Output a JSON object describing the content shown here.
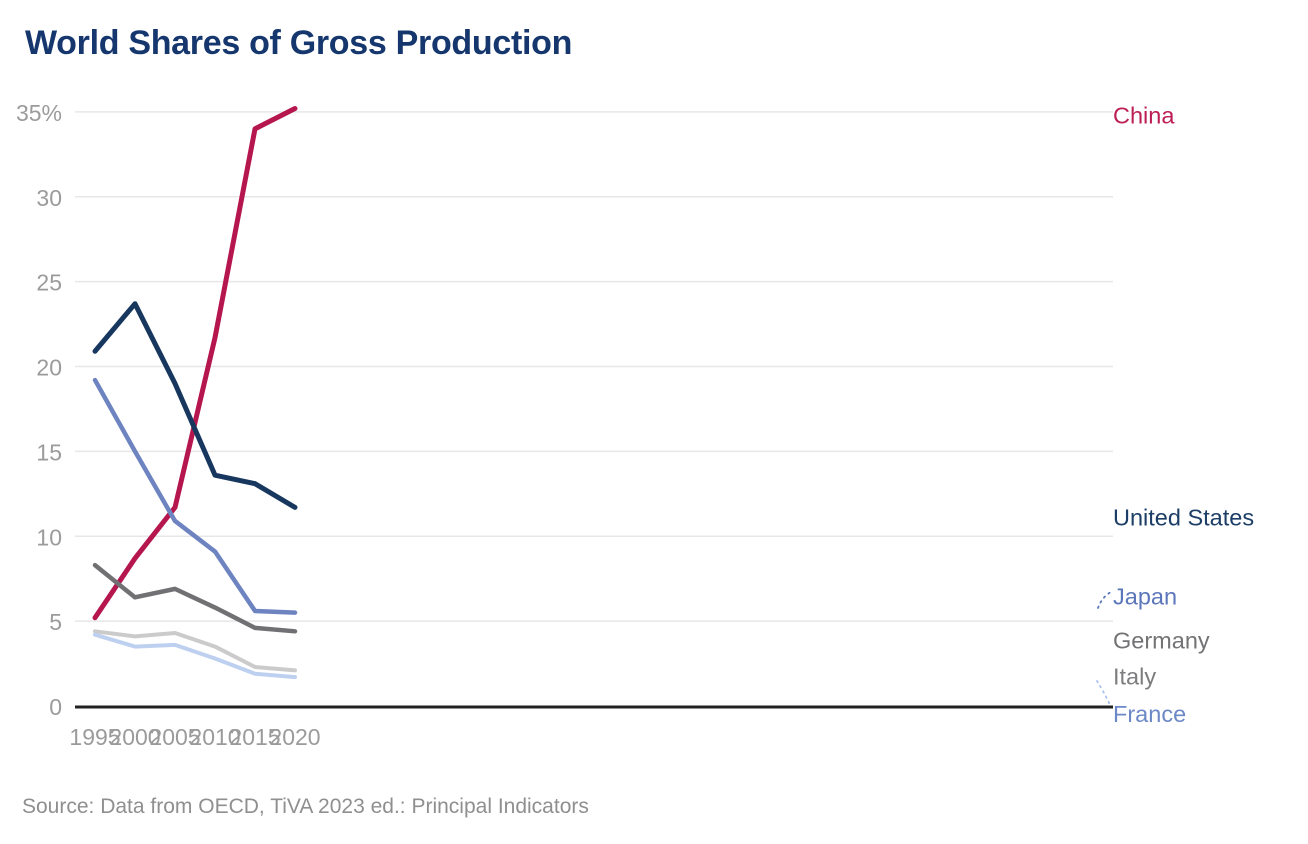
{
  "chart_data": {
    "type": "line",
    "title": "World Shares of Gross Production",
    "source_note": "Source: Data from OECD, TiVA 2023 ed.: Principal Indicators",
    "x": [
      1995,
      2000,
      2005,
      2010,
      2015,
      2020
    ],
    "x_tick_labels": [
      "1995",
      "2000",
      "2005",
      "2010",
      "2015",
      "2020"
    ],
    "y_ticks": [
      0,
      5,
      10,
      15,
      20,
      25,
      30,
      35
    ],
    "y_tick_labels": [
      "0",
      "5",
      "10",
      "15",
      "20",
      "25",
      "30",
      "35%"
    ],
    "ylim": [
      0,
      36
    ],
    "xlim": [
      1995,
      2020
    ],
    "unit": "percent share of world gross production",
    "grid": "horizontal",
    "legend": "direct labels at right end of each line",
    "series": [
      {
        "name": "China",
        "color": "#b6164e",
        "values": [
          5.2,
          8.7,
          11.7,
          21.7,
          34.0,
          35.2
        ]
      },
      {
        "name": "United States",
        "color": "#17375f",
        "values": [
          20.9,
          23.7,
          19.0,
          13.6,
          13.1,
          11.7
        ]
      },
      {
        "name": "Japan",
        "color": "#6d84c1",
        "values": [
          19.2,
          15.0,
          10.9,
          9.1,
          5.6,
          5.5
        ]
      },
      {
        "name": "Germany",
        "color": "#717174",
        "values": [
          8.3,
          6.4,
          6.9,
          5.8,
          4.6,
          4.4
        ]
      },
      {
        "name": "Italy",
        "color": "#cbcbcb",
        "values": [
          4.4,
          4.1,
          4.3,
          3.5,
          2.3,
          2.1
        ]
      },
      {
        "name": "France",
        "color": "#bdd0f0",
        "values": [
          4.2,
          3.5,
          3.6,
          2.8,
          1.9,
          1.7
        ]
      }
    ],
    "series_label_colors": {
      "China": "#bc1e55",
      "United States": "#1c3e66",
      "Japan": "#5b76ba",
      "Germany": "#737376",
      "Italy": "#7d7d80",
      "France": "#6c88c6"
    }
  }
}
